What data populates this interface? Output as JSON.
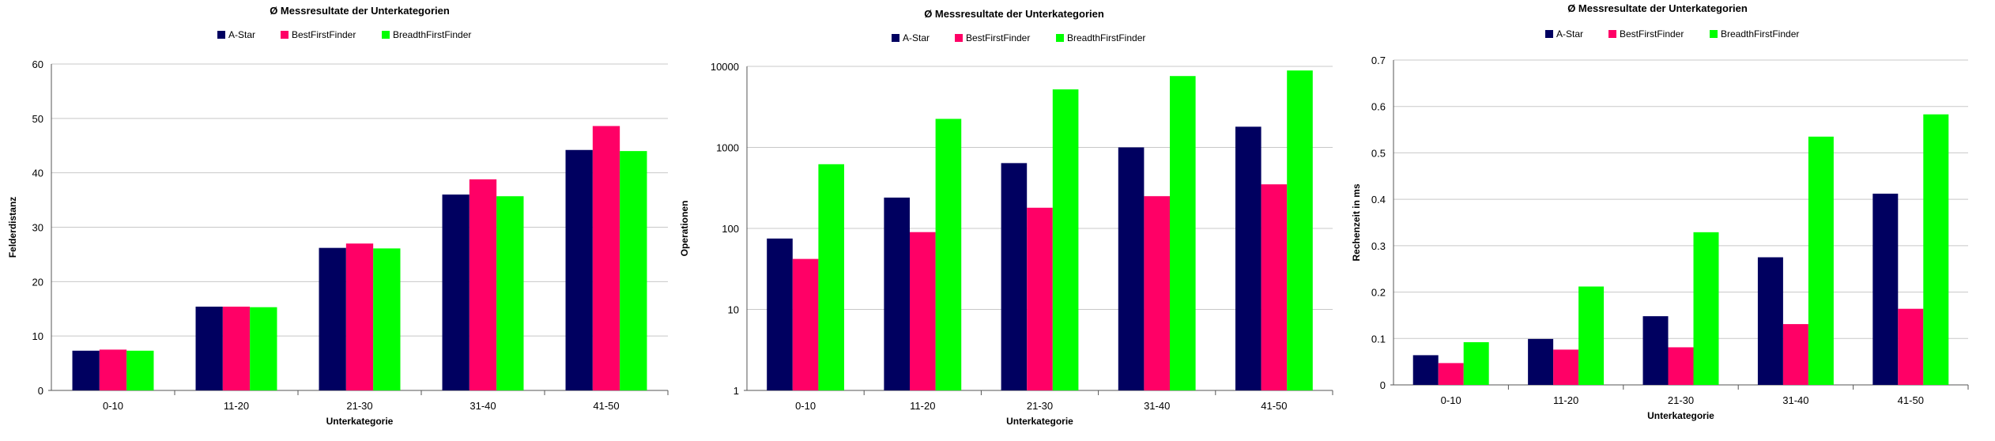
{
  "colors": {
    "A-Star": "#000060",
    "BestFirstFinder": "#ff0066",
    "BreadthFirstFinder": "#00ff00"
  },
  "chart_data": [
    {
      "type": "bar",
      "title": "Ø Messresultate der Unterkategorien",
      "xlabel": "Unterkategorie",
      "ylabel": "Felderdistanz",
      "categories": [
        "0-10",
        "11-20",
        "21-30",
        "31-40",
        "41-50"
      ],
      "scale": "linear",
      "ylim": [
        0,
        60
      ],
      "yticks": [
        0,
        10,
        20,
        30,
        40,
        50,
        60
      ],
      "ytick_labels": [
        "0",
        "10",
        "20",
        "30",
        "40",
        "50",
        "60"
      ],
      "grid": true,
      "legend": "top-center",
      "series": [
        {
          "name": "A-Star",
          "values": [
            7.3,
            15.4,
            26.2,
            36.0,
            44.2
          ]
        },
        {
          "name": "BestFirstFinder",
          "values": [
            7.5,
            15.4,
            27.0,
            38.8,
            48.6
          ]
        },
        {
          "name": "BreadthFirstFinder",
          "values": [
            7.3,
            15.3,
            26.1,
            35.7,
            44.0
          ]
        }
      ]
    },
    {
      "type": "bar",
      "title": "Ø Messresultate der Unterkategorien",
      "xlabel": "Unterkategorie",
      "ylabel": "Operationen",
      "categories": [
        "0-10",
        "11-20",
        "21-30",
        "31-40",
        "41-50"
      ],
      "scale": "log",
      "ylim": [
        1,
        10000
      ],
      "yticks": [
        1,
        10,
        100,
        1000,
        10000
      ],
      "ytick_labels": [
        "1",
        "10",
        "100",
        "1000",
        "10000"
      ],
      "grid": true,
      "legend": "top-center",
      "series": [
        {
          "name": "A-Star",
          "values": [
            75,
            240,
            640,
            1000,
            1800
          ]
        },
        {
          "name": "BestFirstFinder",
          "values": [
            42,
            90,
            180,
            250,
            350
          ]
        },
        {
          "name": "BreadthFirstFinder",
          "values": [
            620,
            2250,
            5200,
            7600,
            8900
          ]
        }
      ]
    },
    {
      "type": "bar",
      "title": "Ø Messresultate der Unterkategorien",
      "xlabel": "Unterkategorie",
      "ylabel": "Rechenzeit in ms",
      "categories": [
        "0-10",
        "11-20",
        "21-30",
        "31-40",
        "41-50"
      ],
      "scale": "linear",
      "ylim": [
        0,
        0.7
      ],
      "yticks": [
        0,
        0.1,
        0.2,
        0.3,
        0.4,
        0.5,
        0.6,
        0.7
      ],
      "ytick_labels": [
        "0",
        "0.1",
        "0.2",
        "0.3",
        "0.4",
        "0.5",
        "0.6",
        "0.7"
      ],
      "grid": true,
      "legend": "top-center",
      "series": [
        {
          "name": "A-Star",
          "values": [
            0.064,
            0.099,
            0.148,
            0.275,
            0.412
          ]
        },
        {
          "name": "BestFirstFinder",
          "values": [
            0.047,
            0.076,
            0.081,
            0.131,
            0.164
          ]
        },
        {
          "name": "BreadthFirstFinder",
          "values": [
            0.092,
            0.212,
            0.329,
            0.535,
            0.583
          ]
        }
      ]
    }
  ]
}
